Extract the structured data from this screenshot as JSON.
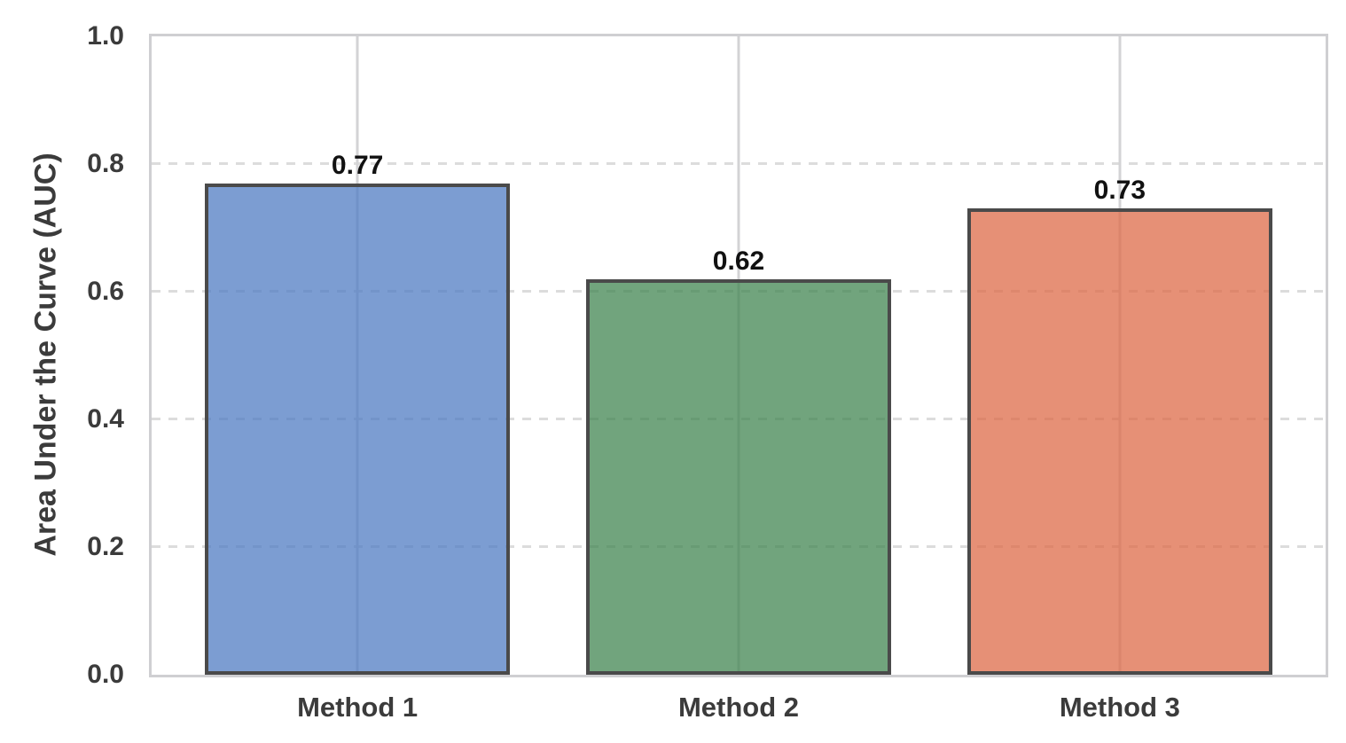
{
  "chart_data": {
    "type": "bar",
    "title": "",
    "categories": [
      "Method 1",
      "Method 2",
      "Method 3"
    ],
    "values": [
      0.77,
      0.62,
      0.73
    ],
    "value_labels": [
      "0.77",
      "0.62",
      "0.73"
    ],
    "xlabel": "",
    "ylabel": "Area Under the Curve (AUC)",
    "ylim": [
      0.0,
      1.0
    ],
    "yticks": [
      "0.0",
      "0.2",
      "0.4",
      "0.6",
      "0.8",
      "1.0"
    ],
    "ytick_values": [
      0.0,
      0.2,
      0.4,
      0.6,
      0.8,
      1.0
    ],
    "xlim_units": [
      -0.54,
      2.54
    ],
    "bar_width_units": 0.8,
    "grid": {
      "horizontal": "dashed",
      "vertical": "solid",
      "on": true
    },
    "legend": "none",
    "colors": {
      "bar_fills": [
        "#507CC3",
        "#418551",
        "#DD6B48"
      ],
      "bar_fill_alpha": 0.75,
      "bar_edge": "#4A4A4A",
      "spine": "#CFCFD2",
      "grid_horizontal": "#DCDCDC",
      "grid_vertical": "#D3D3D5",
      "tick_label": "#3B3B3B",
      "value_label": "#111111",
      "background": "#FFFFFF"
    }
  }
}
